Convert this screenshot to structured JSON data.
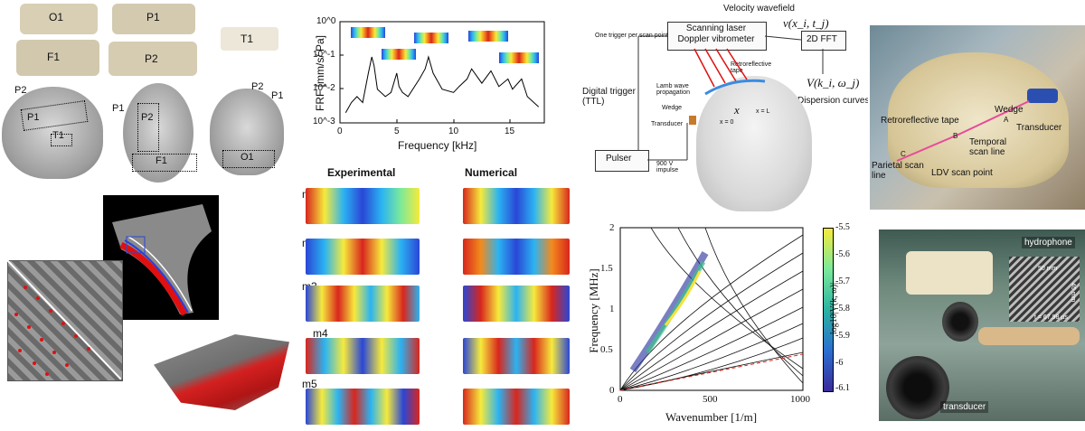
{
  "skull_samples": {
    "pieces": [
      "O1",
      "P1",
      "F1",
      "P2",
      "T1"
    ],
    "region_labels": {
      "left": [
        "P2",
        "P1",
        "T1"
      ],
      "middle": [
        "P1",
        "P2",
        "F1"
      ],
      "right": [
        "P2",
        "P1",
        "O1"
      ]
    }
  },
  "frf_plot": {
    "ylabel": "FRF [mm/s/ Pa]",
    "xlabel": "Frequency [kHz]",
    "yticks": [
      "10^0",
      "10^-1",
      "10^-2",
      "10^-3"
    ],
    "xticks": [
      "0",
      "5",
      "10",
      "15"
    ]
  },
  "modes": {
    "col_experimental": "Experimental",
    "col_numerical": "Numerical",
    "labels": [
      "m1",
      "m2",
      "m3",
      "m4",
      "m5"
    ]
  },
  "setup_diagram": {
    "title": "Velocity wavefield",
    "v_label": "v(x_i, t_j)",
    "trigger_note": "One trigger per scan point",
    "vibrometer": "Scanning laser Doppler vibrometer",
    "fft": "2D FFT",
    "tape": "Retroreflective tape",
    "digital_trigger": "Digital trigger (TTL)",
    "lamb": "Lamb wave propagation",
    "wedge": "Wedge",
    "transducer": "Transducer",
    "x_label": "x",
    "x0": "x = 0",
    "xL": "x = L",
    "V_label": "V(k_i, ω_j)",
    "dispersion": "Dispersion curves",
    "pulser": "Pulser",
    "impulse": "900 V impulse"
  },
  "photo_right_top": {
    "wedge": "Wedge",
    "retro": "Retroreflective tape",
    "transducer": "Transducer",
    "temporal": "Temporal scan line",
    "parietal": "Parietal scan line",
    "ldv": "LDV scan point",
    "points": [
      "A",
      "B",
      "C"
    ]
  },
  "dispersion_plot": {
    "ylabel": "Frequency [MHz]",
    "xlabel": "Wavenumber [1/m]",
    "yticks": [
      "0",
      "0.5",
      "1",
      "1.5",
      "2"
    ],
    "xticks": [
      "0",
      "500",
      "1000"
    ],
    "colorbar_label": "log10|V(k, ω)|",
    "colorbar_ticks": [
      "-5.5",
      "-5.6",
      "-5.7",
      "-5.8",
      "-5.9",
      "-6",
      "-6.1"
    ]
  },
  "photo_right_bottom": {
    "hydrophone": "hydrophone",
    "transducer": "transducer",
    "scale1": "50 mm",
    "scale2": "40 mm",
    "time": "t = 67.98 μs"
  },
  "chart_data": [
    {
      "type": "line",
      "xlabel": "Frequency [kHz]",
      "ylabel": "FRF [mm/s/ Pa]",
      "yscale": "log",
      "xlim": [
        0,
        18
      ],
      "ylim": [
        0.001,
        1
      ],
      "x": [
        0.5,
        1,
        1.5,
        2,
        2.5,
        2.8,
        3,
        3.3,
        4,
        4.5,
        5,
        5.2,
        5.5,
        6,
        7,
        7.5,
        7.8,
        8.2,
        9,
        10,
        10.5,
        11.2,
        11.6,
        12.5,
        13.3,
        14,
        14.8,
        15.2,
        16,
        16.5,
        17.5
      ],
      "y": [
        0.002,
        0.004,
        0.006,
        0.004,
        0.03,
        0.09,
        0.05,
        0.01,
        0.006,
        0.008,
        0.03,
        0.012,
        0.008,
        0.006,
        0.02,
        0.04,
        0.09,
        0.03,
        0.01,
        0.008,
        0.012,
        0.02,
        0.04,
        0.015,
        0.035,
        0.012,
        0.02,
        0.01,
        0.02,
        0.006,
        0.003
      ]
    },
    {
      "type": "heatmap",
      "xlabel": "Wavenumber [1/m]",
      "ylabel": "Frequency [MHz]",
      "xlim": [
        0,
        1000
      ],
      "ylim": [
        0,
        2
      ],
      "colorbar_range": [
        -6.1,
        -5.5
      ]
    }
  ]
}
